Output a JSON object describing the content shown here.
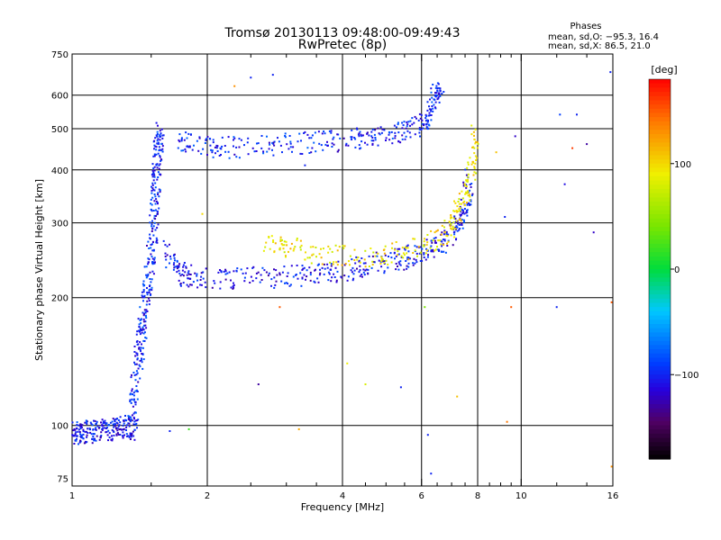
{
  "chart_data": {
    "type": "scatter",
    "title": "Tromsø 20130113 09:48:00-09:49:43",
    "subtitle": "RwPretec (8p)",
    "xlabel": "Frequency [MHz]",
    "ylabel": "Stationary phase Virtual Height [km]",
    "x_scale": "log",
    "y_scale": "log",
    "xlim": [
      1,
      16
    ],
    "ylim": [
      72,
      750
    ],
    "x_ticks": [
      1,
      2,
      4,
      6,
      8,
      10,
      16
    ],
    "x_tick_labels": [
      "1",
      "2",
      "4",
      "6",
      "8",
      "10",
      "16"
    ],
    "x_minor_ticks": [
      1.5,
      2.5,
      3,
      3.5,
      4.5,
      5,
      5.5,
      6.5,
      7,
      7.5,
      8.5,
      9,
      9.5,
      12,
      14
    ],
    "y_ticks": [
      75,
      100,
      200,
      300,
      400,
      500,
      600,
      750
    ],
    "y_tick_labels": [
      "75",
      "100",
      "200",
      "300",
      "400",
      "500",
      "600",
      "750"
    ],
    "grid": true,
    "stats": {
      "heading": "Phases",
      "line_o": "mean, sd,O: −95.3, 16.4",
      "line_x": "mean, sd,X: 86.5, 21.0"
    },
    "colorbar": {
      "label": "[deg]",
      "range": [
        -180,
        180
      ],
      "ticks": [
        100,
        0,
        -100
      ],
      "tick_labels": [
        "100",
        "0",
        "−100"
      ]
    },
    "colors": {
      "grid": "#000000",
      "background": "#ffffff"
    },
    "series": [
      {
        "trace": "low-frequency trace near 100 km",
        "points": [
          [
            1.0,
            97
          ],
          [
            1.03,
            96
          ],
          [
            1.06,
            97
          ],
          [
            1.1,
            96
          ],
          [
            1.15,
            98
          ],
          [
            1.2,
            97
          ],
          [
            1.25,
            98
          ],
          [
            1.3,
            99
          ],
          [
            1.35,
            100
          ],
          [
            1.38,
            98
          ]
        ],
        "phase": -105
      },
      {
        "trace": "E cusp rising to 500 km",
        "points": [
          [
            1.36,
            105
          ],
          [
            1.38,
            120
          ],
          [
            1.4,
            140
          ],
          [
            1.42,
            160
          ],
          [
            1.44,
            175
          ],
          [
            1.46,
            200
          ],
          [
            1.48,
            220
          ],
          [
            1.5,
            250
          ],
          [
            1.52,
            290
          ],
          [
            1.53,
            330
          ],
          [
            1.54,
            380
          ],
          [
            1.55,
            420
          ],
          [
            1.56,
            470
          ],
          [
            1.57,
            495
          ]
        ],
        "phase": -100
      },
      {
        "trace": "lower F trace",
        "points": [
          [
            1.6,
            260
          ],
          [
            1.7,
            235
          ],
          [
            1.8,
            225
          ],
          [
            2.0,
            222
          ],
          [
            2.3,
            222
          ],
          [
            2.8,
            224
          ],
          [
            3.2,
            226
          ],
          [
            3.6,
            228
          ],
          [
            4.0,
            232
          ],
          [
            4.5,
            238
          ],
          [
            5.0,
            243
          ],
          [
            5.5,
            248
          ],
          [
            6.0,
            255
          ],
          [
            6.5,
            265
          ],
          [
            7.0,
            280
          ],
          [
            7.3,
            300
          ],
          [
            7.5,
            330
          ],
          [
            7.7,
            380
          ]
        ],
        "phase": -105
      },
      {
        "trace": "upper F trace",
        "points": [
          [
            1.75,
            470
          ],
          [
            1.9,
            460
          ],
          [
            2.1,
            450
          ],
          [
            2.5,
            455
          ],
          [
            3.0,
            460
          ],
          [
            3.5,
            465
          ],
          [
            4.0,
            470
          ],
          [
            4.5,
            478
          ],
          [
            5.0,
            485
          ],
          [
            5.5,
            495
          ],
          [
            6.0,
            510
          ],
          [
            6.2,
            530
          ],
          [
            6.4,
            600
          ],
          [
            6.6,
            620
          ]
        ],
        "phase": -100
      },
      {
        "trace": "X-mode trace",
        "points": [
          [
            2.7,
            270
          ],
          [
            3.0,
            265
          ],
          [
            3.5,
            255
          ],
          [
            4.2,
            250
          ],
          [
            5.0,
            252
          ],
          [
            6.0,
            265
          ],
          [
            6.8,
            285
          ],
          [
            7.2,
            310
          ],
          [
            7.5,
            350
          ],
          [
            7.8,
            420
          ],
          [
            7.9,
            490
          ]
        ],
        "phase": 95
      }
    ],
    "scattered_points": [
      {
        "x": 2.3,
        "y": 630,
        "phase": 130
      },
      {
        "x": 2.5,
        "y": 660,
        "phase": -100
      },
      {
        "x": 2.8,
        "y": 670,
        "phase": -100
      },
      {
        "x": 3.3,
        "y": 410,
        "phase": -100
      },
      {
        "x": 2.9,
        "y": 190,
        "phase": 150
      },
      {
        "x": 2.6,
        "y": 125,
        "phase": -130
      },
      {
        "x": 3.2,
        "y": 98,
        "phase": 120
      },
      {
        "x": 4.1,
        "y": 140,
        "phase": 90
      },
      {
        "x": 4.5,
        "y": 125,
        "phase": 80
      },
      {
        "x": 5.4,
        "y": 123,
        "phase": -100
      },
      {
        "x": 6.1,
        "y": 190,
        "phase": 40
      },
      {
        "x": 6.2,
        "y": 95,
        "phase": -100
      },
      {
        "x": 6.3,
        "y": 77,
        "phase": -100
      },
      {
        "x": 7.2,
        "y": 117,
        "phase": 110
      },
      {
        "x": 9.2,
        "y": 310,
        "phase": -100
      },
      {
        "x": 9.5,
        "y": 190,
        "phase": 150
      },
      {
        "x": 9.7,
        "y": 480,
        "phase": -120
      },
      {
        "x": 12.0,
        "y": 190,
        "phase": -100
      },
      {
        "x": 12.2,
        "y": 540,
        "phase": -90
      },
      {
        "x": 12.5,
        "y": 370,
        "phase": -110
      },
      {
        "x": 13.0,
        "y": 450,
        "phase": 160
      },
      {
        "x": 13.3,
        "y": 540,
        "phase": -100
      },
      {
        "x": 14.0,
        "y": 460,
        "phase": -130
      },
      {
        "x": 14.5,
        "y": 285,
        "phase": -120
      },
      {
        "x": 15.8,
        "y": 680,
        "phase": -100
      },
      {
        "x": 15.9,
        "y": 195,
        "phase": 150
      },
      {
        "x": 15.9,
        "y": 80,
        "phase": 130
      },
      {
        "x": 8.8,
        "y": 440,
        "phase": 110
      },
      {
        "x": 9.3,
        "y": 102,
        "phase": 140
      },
      {
        "x": 1.82,
        "y": 98,
        "phase": 20
      },
      {
        "x": 1.65,
        "y": 97,
        "phase": -100
      },
      {
        "x": 1.95,
        "y": 315,
        "phase": 100
      }
    ]
  }
}
